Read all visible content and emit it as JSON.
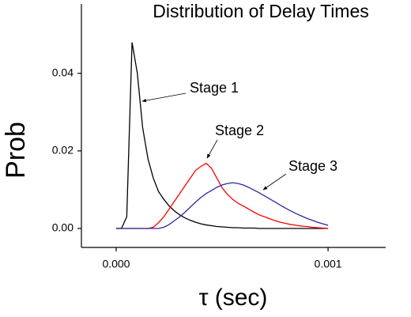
{
  "chart_data": {
    "type": "line",
    "title": "Distribution of Delay Times",
    "xlabel": "τ (sec)",
    "ylabel": "Prob",
    "x": [
      0,
      2.5e-05,
      5e-05,
      7.5e-05,
      0.0001,
      0.000125,
      0.00015,
      0.000175,
      0.0002,
      0.000225,
      0.00025,
      0.000275,
      0.0003,
      0.000325,
      0.00035,
      0.000375,
      0.0004,
      0.000425,
      0.00045,
      0.000475,
      0.0005,
      0.000525,
      0.00055,
      0.000575,
      0.0006,
      0.000625,
      0.00065,
      0.000675,
      0.0007,
      0.000725,
      0.00075,
      0.000775,
      0.0008,
      0.000825,
      0.00085,
      0.000875,
      0.0009,
      0.000925,
      0.00095,
      0.000975,
      0.001
    ],
    "series": [
      {
        "name": "Stage 1",
        "color": "#000000",
        "values": [
          0,
          0,
          0.003,
          0.048,
          0.04,
          0.026,
          0.018,
          0.013,
          0.0095,
          0.0075,
          0.0058,
          0.0045,
          0.0035,
          0.0027,
          0.0021,
          0.0016,
          0.0012,
          0.0009,
          0.0007,
          0.0005,
          0.0004,
          0.0003,
          0.0002,
          0.0002,
          0.0001,
          0.0001,
          0.0001,
          0,
          0,
          0,
          0,
          0,
          0,
          0,
          0,
          0,
          0,
          0,
          0,
          0,
          0
        ]
      },
      {
        "name": "Stage 2",
        "color": "#ff0000",
        "values": [
          0,
          0,
          0,
          0,
          0,
          0,
          0,
          0.0003,
          0.0015,
          0.003,
          0.005,
          0.007,
          0.009,
          0.011,
          0.013,
          0.015,
          0.016,
          0.0168,
          0.0155,
          0.013,
          0.0105,
          0.0088,
          0.0075,
          0.0065,
          0.0058,
          0.005,
          0.0042,
          0.0035,
          0.003,
          0.0025,
          0.002,
          0.0016,
          0.0013,
          0.001,
          0.0008,
          0.0006,
          0.0005,
          0.0003,
          0.0002,
          0.0001,
          0
        ]
      },
      {
        "name": "Stage 3",
        "color": "#2a2a9a",
        "values": [
          0,
          0,
          0,
          0,
          0,
          0,
          0,
          0,
          0,
          0.0003,
          0.001,
          0.002,
          0.003,
          0.0042,
          0.0055,
          0.0068,
          0.008,
          0.009,
          0.0098,
          0.0106,
          0.0112,
          0.0116,
          0.0118,
          0.0116,
          0.0112,
          0.0106,
          0.0099,
          0.0092,
          0.0084,
          0.0076,
          0.0068,
          0.006,
          0.0052,
          0.0045,
          0.0038,
          0.0032,
          0.0026,
          0.0021,
          0.0016,
          0.0012,
          0.0008
        ]
      }
    ],
    "xlim": [
      -0.000164,
      0.001272
    ],
    "xticks": [
      {
        "value": 0,
        "label": "0.000"
      },
      {
        "value": 0.001,
        "label": "0.001"
      }
    ],
    "ylim": [
      -0.0049,
      0.0579
    ],
    "yticks": [
      {
        "value": 0,
        "label": "0.00"
      },
      {
        "value": 0.02,
        "label": "0.02"
      },
      {
        "value": 0.04,
        "label": "0.04"
      }
    ],
    "grid": false
  }
}
